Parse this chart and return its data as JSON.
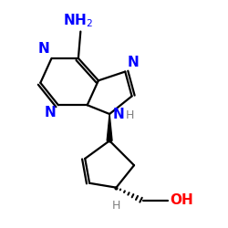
{
  "bg_color": "#ffffff",
  "bond_color": "#000000",
  "N_color": "#0000ff",
  "O_color": "#ff0000",
  "H_color": "#808080",
  "bond_width": 1.6,
  "figsize": [
    2.5,
    2.5
  ],
  "dpi": 100,
  "xlim": [
    0,
    10
  ],
  "ylim": [
    0,
    10
  ]
}
